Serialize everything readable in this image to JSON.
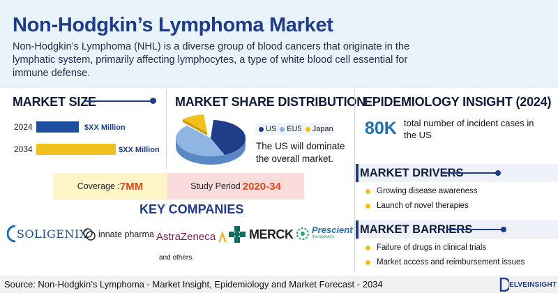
{
  "header": {
    "title": "Non-Hodgkin’s Lymphoma Market",
    "intro": "Non-Hodgkin’s Lymphoma (NHL) is a diverse group of blood cancers that originate in the lymphatic system, primarily affecting lymphocytes, a type of white blood cell essential for immune defense."
  },
  "market_size": {
    "title": "MARKET SIZE",
    "rows": [
      {
        "year": "2024",
        "value": "$XX Million"
      },
      {
        "year": "2034",
        "value": "$XX Million"
      }
    ]
  },
  "market_share": {
    "title": "MARKET SHARE DISTRIBUTION",
    "legend": [
      "US",
      "EU5",
      "Japan"
    ],
    "text": "The US will dominate the overall market."
  },
  "epidemiology": {
    "title": "EPIDEMIOLOGY INSIGHT (2024)",
    "number": "80K",
    "text": "total number of incident cases in the US"
  },
  "coverage": {
    "label": "Coverage : ",
    "value": "7MM"
  },
  "study_period": {
    "label": "Study Period ",
    "value": "2020-34"
  },
  "key_companies": {
    "title": "KEY COMPANIES",
    "logos": {
      "soligenix": "SOLIGENIX",
      "innate": "innate pharma",
      "astrazeneca": "AstraZeneca",
      "merck": "MERCK",
      "prescient": "Prescient",
      "prescient_sub": "therapeutics"
    },
    "others": "and others."
  },
  "drivers": {
    "title": "MARKET DRIVERS",
    "items": [
      "Growing disease awareness",
      "Launch of novel therapies"
    ]
  },
  "barriers": {
    "title": "MARKET BARRIERS",
    "items": [
      "Failure of drugs in clinical trials",
      "Market access and reimbursement issues"
    ]
  },
  "footer": {
    "source": "Source: Non-Hodgkin’s Lymphoma - Market Insight, Epidemiology and Market Forecast - 2034",
    "brand": "ELVEINSIGHT"
  },
  "colors": {
    "navy": "#1f3c88",
    "bar_2024": "#1f4fa0",
    "bar_2034": "#f2c01c",
    "us": "#1f3c88",
    "eu5": "#8fb5e3",
    "japan": "#f2c01c",
    "accent_orange": "#d84a1b"
  }
}
